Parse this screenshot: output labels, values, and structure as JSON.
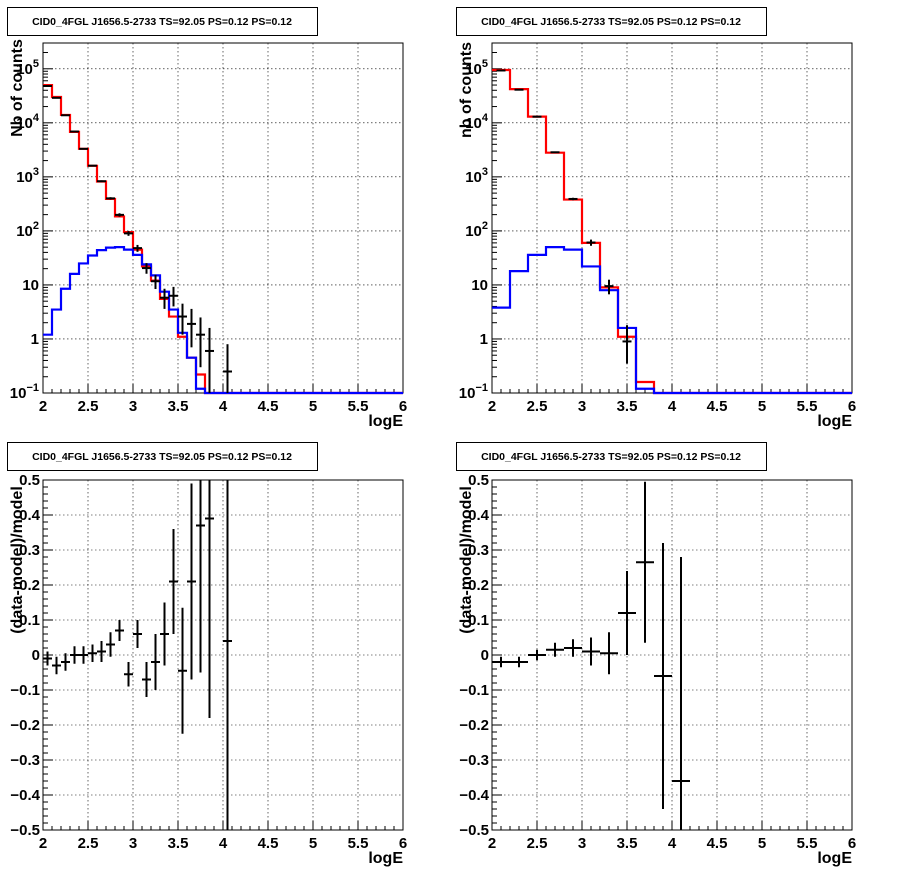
{
  "chart_data": [
    {
      "type": "step-histogram",
      "title": "CID0_4FGL J1656.5-2733 TS=92.05 PS=0.12 PS=0.12",
      "xlabel": "logE",
      "ylabel": "Nb of counts",
      "log_y": true,
      "xlim": [
        2,
        6
      ],
      "ylim": [
        0.1,
        300000
      ],
      "grid": true,
      "xticks": [
        "2",
        "2.5",
        "3",
        "3.5",
        "4",
        "4.5",
        "5",
        "5.5",
        "6"
      ],
      "yticks": [
        {
          "value": 0.1,
          "base": "10",
          "exp": "−1"
        },
        {
          "value": 1,
          "label": "1"
        },
        {
          "value": 10,
          "label": "10"
        },
        {
          "value": 100,
          "base": "10",
          "exp": "2"
        },
        {
          "value": 1000,
          "base": "10",
          "exp": "3"
        },
        {
          "value": 10000,
          "base": "10",
          "exp": "4"
        },
        {
          "value": 100000,
          "base": "10",
          "exp": "5"
        }
      ],
      "bin_edges": [
        2.0,
        2.1,
        2.2,
        2.3,
        2.4,
        2.5,
        2.6,
        2.7,
        2.8,
        2.9,
        3.0,
        3.1,
        3.2,
        3.3,
        3.4,
        3.5,
        3.6,
        3.7,
        3.8,
        3.9,
        4.0,
        4.1,
        4.2,
        4.3,
        4.4,
        4.5,
        4.6,
        4.7,
        4.8,
        4.9,
        5.0,
        5.1,
        5.2,
        5.3,
        5.4,
        5.5,
        5.6,
        5.7,
        5.8,
        5.9,
        6.0
      ],
      "series": [
        {
          "color": "#ff0000",
          "values": [
            50000,
            30000,
            14000,
            6800,
            3300,
            1600,
            820,
            390,
            185,
            95,
            45,
            22,
            12,
            5.5,
            2.6,
            1.1,
            0.45,
            0.22,
            0.1,
            0.1,
            0.1,
            0.1,
            0.1,
            0.1,
            0.1,
            0.1,
            0.1,
            0.1,
            0.1,
            0.1,
            0.1,
            0.1,
            0.1,
            0.1,
            0.1,
            0.1,
            0.1,
            0.1,
            0.1,
            0.1
          ]
        },
        {
          "color": "#0000ff",
          "values": [
            1.2,
            3.5,
            8.5,
            16,
            25,
            35,
            44,
            49,
            50,
            45,
            36,
            24,
            15,
            7.5,
            3.5,
            1.3,
            0.45,
            0.12,
            0.1,
            0.1,
            0.1,
            0.1,
            0.1,
            0.1,
            0.1,
            0.1,
            0.1,
            0.1,
            0.1,
            0.1,
            0.1,
            0.1,
            0.1,
            0.1,
            0.1,
            0.1,
            0.1,
            0.1,
            0.1,
            0.1
          ]
        }
      ],
      "data_points": [
        {
          "x": 2.05,
          "y": 48000,
          "ylo": 47500,
          "yhi": 48500
        },
        {
          "x": 2.15,
          "y": 29000,
          "ylo": 28700,
          "yhi": 29300
        },
        {
          "x": 2.25,
          "y": 13800,
          "ylo": 13600,
          "yhi": 14000
        },
        {
          "x": 2.35,
          "y": 6900,
          "ylo": 6800,
          "yhi": 7000
        },
        {
          "x": 2.45,
          "y": 3300,
          "ylo": 3240,
          "yhi": 3360
        },
        {
          "x": 2.55,
          "y": 1610,
          "ylo": 1570,
          "yhi": 1650
        },
        {
          "x": 2.65,
          "y": 830,
          "ylo": 800,
          "yhi": 860
        },
        {
          "x": 2.75,
          "y": 400,
          "ylo": 380,
          "yhi": 420
        },
        {
          "x": 2.85,
          "y": 198,
          "ylo": 184,
          "yhi": 212
        },
        {
          "x": 2.95,
          "y": 90,
          "ylo": 81,
          "yhi": 99
        },
        {
          "x": 3.05,
          "y": 48,
          "ylo": 41,
          "yhi": 55
        },
        {
          "x": 3.15,
          "y": 20.5,
          "ylo": 16.1,
          "yhi": 25.3
        },
        {
          "x": 3.25,
          "y": 11.7,
          "ylo": 8.4,
          "yhi": 15.4
        },
        {
          "x": 3.35,
          "y": 5.8,
          "ylo": 3.6,
          "yhi": 8.5
        },
        {
          "x": 3.45,
          "y": 6.3,
          "ylo": 4.0,
          "yhi": 9.2
        },
        {
          "x": 3.55,
          "y": 2.6,
          "ylo": 1.2,
          "yhi": 4.5
        },
        {
          "x": 3.65,
          "y": 1.9,
          "ylo": 0.7,
          "yhi": 3.6
        },
        {
          "x": 3.75,
          "y": 1.2,
          "ylo": 0.3,
          "yhi": 2.5
        },
        {
          "x": 3.85,
          "y": 0.6,
          "ylo": 0.1,
          "yhi": 1.6
        },
        {
          "x": 4.05,
          "y": 0.25,
          "ylo": 0.1,
          "yhi": 0.8
        }
      ]
    },
    {
      "type": "step-histogram",
      "title": "CID0_4FGL J1656.5-2733 TS=92.05 PS=0.12 PS=0.12",
      "xlabel": "logE",
      "ylabel": "nb of counts",
      "log_y": true,
      "xlim": [
        2,
        6
      ],
      "ylim": [
        0.1,
        300000
      ],
      "grid": true,
      "xticks": [
        "2",
        "2.5",
        "3",
        "3.5",
        "4",
        "4.5",
        "5",
        "5.5",
        "6"
      ],
      "yticks": [
        {
          "value": 0.1,
          "base": "10",
          "exp": "−1"
        },
        {
          "value": 1,
          "label": "1"
        },
        {
          "value": 10,
          "label": "10"
        },
        {
          "value": 100,
          "base": "10",
          "exp": "2"
        },
        {
          "value": 1000,
          "base": "10",
          "exp": "3"
        },
        {
          "value": 10000,
          "base": "10",
          "exp": "4"
        },
        {
          "value": 100000,
          "base": "10",
          "exp": "5"
        }
      ],
      "bin_edges": [
        2.0,
        2.2,
        2.4,
        2.6,
        2.8,
        3.0,
        3.2,
        3.4,
        3.6,
        3.8,
        4.0,
        4.2,
        4.4,
        4.6,
        4.8,
        5.0,
        5.2,
        5.4,
        5.6,
        5.8,
        6.0
      ],
      "series": [
        {
          "color": "#ff0000",
          "values": [
            95000,
            42000,
            13000,
            2800,
            380,
            60,
            9,
            1.1,
            0.16,
            0.1,
            0.1,
            0.1,
            0.1,
            0.1,
            0.1,
            0.1,
            0.1,
            0.1,
            0.1,
            0.1
          ]
        },
        {
          "color": "#0000ff",
          "values": [
            3.8,
            18,
            36,
            50,
            45,
            22,
            8,
            1.6,
            0.12,
            0.1,
            0.1,
            0.1,
            0.1,
            0.1,
            0.1,
            0.1,
            0.1,
            0.1,
            0.1,
            0.1
          ]
        }
      ],
      "data_points": [
        {
          "x": 2.1,
          "y": 93000,
          "ylo": 92500,
          "yhi": 93500
        },
        {
          "x": 2.3,
          "y": 41000,
          "ylo": 40700,
          "yhi": 41300
        },
        {
          "x": 2.5,
          "y": 13000,
          "ylo": 12850,
          "yhi": 13150
        },
        {
          "x": 2.7,
          "y": 2850,
          "ylo": 2790,
          "yhi": 2910
        },
        {
          "x": 2.9,
          "y": 390,
          "ylo": 370,
          "yhi": 410
        },
        {
          "x": 3.1,
          "y": 61,
          "ylo": 53,
          "yhi": 69
        },
        {
          "x": 3.3,
          "y": 9.5,
          "ylo": 6.7,
          "yhi": 12.5
        },
        {
          "x": 3.5,
          "y": 0.9,
          "ylo": 0.35,
          "yhi": 1.8
        }
      ]
    },
    {
      "type": "scatter",
      "title": "CID0_4FGL J1656.5-2733 TS=92.05 PS=0.12 PS=0.12",
      "xlabel": "logE",
      "ylabel": "(data-model)/model",
      "xlim": [
        2,
        6
      ],
      "ylim": [
        -0.5,
        0.5
      ],
      "grid": true,
      "xticks": [
        "2",
        "2.5",
        "3",
        "3.5",
        "4",
        "4.5",
        "5",
        "5.5",
        "6"
      ],
      "yticks": [
        "0.5",
        "0.4",
        "0.3",
        "0.2",
        "0.1",
        "0",
        "−0.1",
        "−0.2",
        "−0.3",
        "−0.4",
        "−0.5"
      ],
      "points": [
        {
          "x": 2.05,
          "y": -0.01,
          "err": 0.02
        },
        {
          "x": 2.15,
          "y": -0.03,
          "err": 0.025
        },
        {
          "x": 2.25,
          "y": -0.02,
          "err": 0.025
        },
        {
          "x": 2.35,
          "y": 0.0,
          "err": 0.025
        },
        {
          "x": 2.45,
          "y": 0.0,
          "err": 0.025
        },
        {
          "x": 2.55,
          "y": 0.005,
          "err": 0.025
        },
        {
          "x": 2.65,
          "y": 0.01,
          "err": 0.03
        },
        {
          "x": 2.75,
          "y": 0.03,
          "err": 0.035
        },
        {
          "x": 2.85,
          "y": 0.07,
          "err": 0.03
        },
        {
          "x": 2.95,
          "y": -0.055,
          "err": 0.035
        },
        {
          "x": 3.05,
          "y": 0.06,
          "err": 0.04
        },
        {
          "x": 3.15,
          "y": -0.07,
          "err": 0.05
        },
        {
          "x": 3.25,
          "y": -0.02,
          "err": 0.08
        },
        {
          "x": 3.35,
          "y": 0.06,
          "err": 0.09
        },
        {
          "x": 3.45,
          "y": 0.21,
          "err": 0.15
        },
        {
          "x": 3.55,
          "y": -0.045,
          "err": 0.18
        },
        {
          "x": 3.65,
          "y": 0.21,
          "err": 0.28
        },
        {
          "x": 3.75,
          "y": 0.37,
          "err": 0.42
        },
        {
          "x": 3.85,
          "y": 0.39,
          "err": 0.57
        },
        {
          "x": 4.05,
          "y": 0.04,
          "err": 0.9
        }
      ]
    },
    {
      "type": "scatter",
      "title": "CID0_4FGL J1656.5-2733 TS=92.05 PS=0.12 PS=0.12",
      "xlabel": "logE",
      "ylabel": "(data-model)/model",
      "xlim": [
        2,
        6
      ],
      "ylim": [
        -0.5,
        0.5
      ],
      "grid": true,
      "xticks": [
        "2",
        "2.5",
        "3",
        "3.5",
        "4",
        "4.5",
        "5",
        "5.5",
        "6"
      ],
      "yticks": [
        "0.5",
        "0.4",
        "0.3",
        "0.2",
        "0.1",
        "0",
        "−0.1",
        "−0.2",
        "−0.3",
        "−0.4",
        "−0.5"
      ],
      "points": [
        {
          "x": 2.1,
          "y": -0.02,
          "err": 0.015
        },
        {
          "x": 2.3,
          "y": -0.02,
          "err": 0.015
        },
        {
          "x": 2.5,
          "y": 0.0,
          "err": 0.015
        },
        {
          "x": 2.7,
          "y": 0.015,
          "err": 0.02
        },
        {
          "x": 2.9,
          "y": 0.02,
          "err": 0.025
        },
        {
          "x": 3.1,
          "y": 0.01,
          "err": 0.04
        },
        {
          "x": 3.3,
          "y": 0.005,
          "err": 0.06
        },
        {
          "x": 3.5,
          "y": 0.12,
          "err": 0.12
        },
        {
          "x": 3.7,
          "y": 0.265,
          "err": 0.23
        },
        {
          "x": 3.9,
          "y": -0.06,
          "err": 0.38
        },
        {
          "x": 4.1,
          "y": -0.36,
          "err": 0.64
        }
      ]
    }
  ]
}
